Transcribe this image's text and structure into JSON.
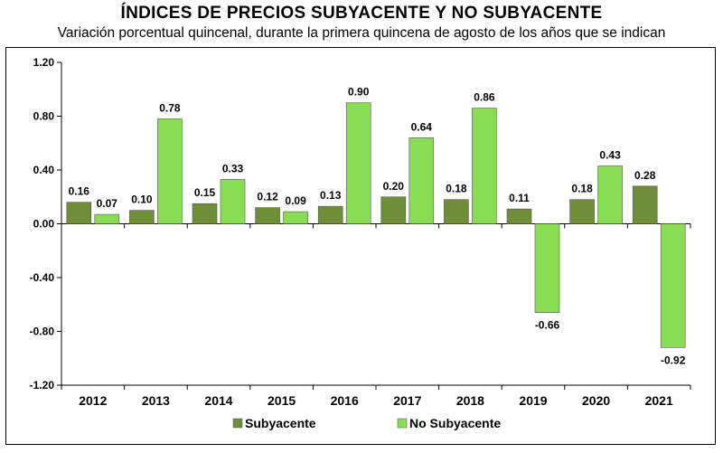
{
  "chart_data": {
    "type": "bar",
    "title": "ÍNDICES DE PRECIOS SUBYACENTE Y NO SUBYACENTE",
    "subtitle": "Variación porcentual quincenal, durante la primera quincena de agosto de los años que se indican",
    "categories": [
      "2012",
      "2013",
      "2014",
      "2015",
      "2016",
      "2017",
      "2018",
      "2019",
      "2020",
      "2021"
    ],
    "series": [
      {
        "name": "Subyacente",
        "color": "#6e8e37",
        "values": [
          0.16,
          0.1,
          0.15,
          0.12,
          0.13,
          0.2,
          0.18,
          0.11,
          0.18,
          0.28
        ],
        "labels": [
          "0.16",
          "0.10",
          "0.15",
          "0.12",
          "0.13",
          "0.20",
          "0.18",
          "0.11",
          "0.18",
          "0.28"
        ]
      },
      {
        "name": "No Subyacente",
        "color": "#88dd55",
        "values": [
          0.07,
          0.78,
          0.33,
          0.09,
          0.9,
          0.64,
          0.86,
          -0.66,
          0.43,
          -0.92
        ],
        "labels": [
          "0.07",
          "0.78",
          "0.33",
          "0.09",
          "0.90",
          "0.64",
          "0.86",
          "-0.66",
          "0.43",
          "-0.92"
        ]
      }
    ],
    "ylim": [
      -1.2,
      1.2
    ],
    "yticks": [
      "1.20",
      "0.80",
      "0.40",
      "0.00",
      "-0.40",
      "-0.80",
      "-1.20"
    ],
    "ytick_values": [
      1.2,
      0.8,
      0.4,
      0.0,
      -0.4,
      -0.8,
      -1.2
    ],
    "grid": false,
    "legend_position": "bottom"
  }
}
